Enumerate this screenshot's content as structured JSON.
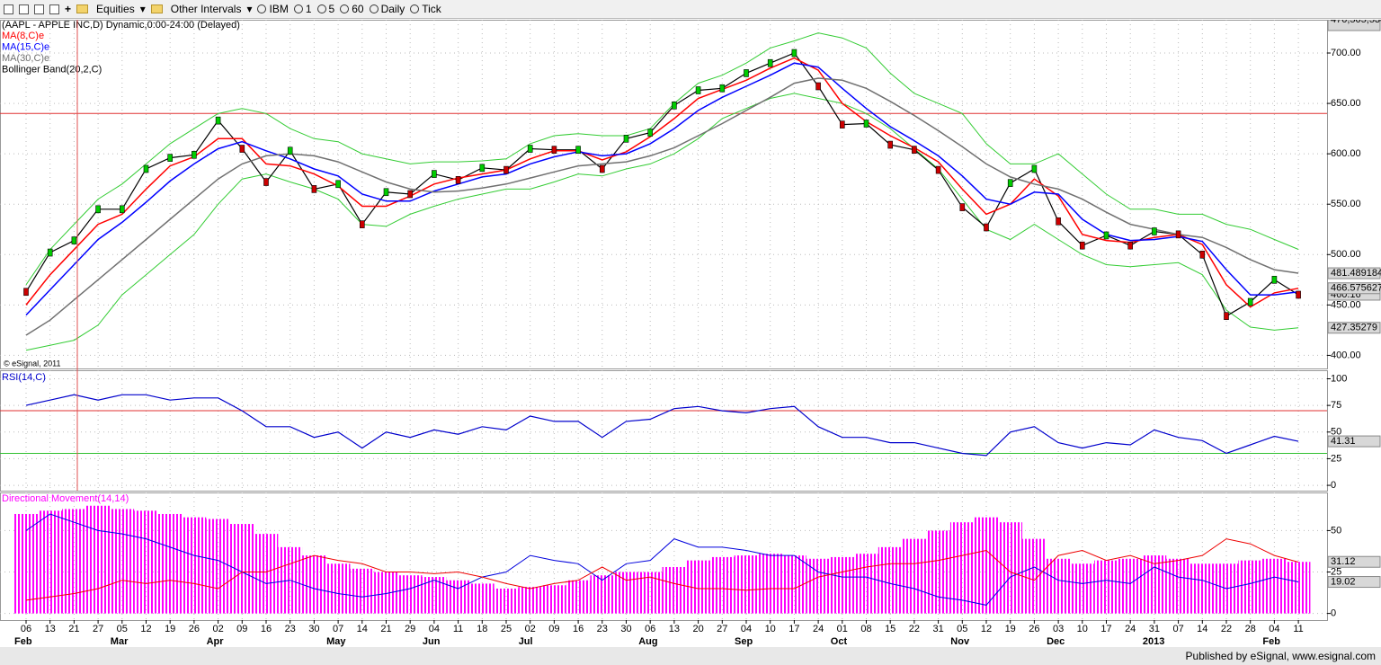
{
  "toolbar": {
    "items": [
      "Equities",
      "Other Intervals",
      "IBM",
      "1",
      "5",
      "60",
      "Daily",
      "Tick"
    ]
  },
  "footer": "Published by eSignal, www.esignal.com",
  "copyright": "© eSignal, 2011",
  "chart_data": [
    {
      "type": "line",
      "title": "(AAPL - APPLE INC,D) Dynamic,0:00-24:00 (Delayed)",
      "categories": [
        "06",
        "13",
        "21",
        "27",
        "05",
        "12",
        "19",
        "26",
        "02",
        "09",
        "16",
        "23",
        "30",
        "07",
        "14",
        "21",
        "29",
        "04",
        "11",
        "18",
        "25",
        "02",
        "09",
        "16",
        "23",
        "30",
        "06",
        "13",
        "20",
        "27",
        "04",
        "10",
        "17",
        "24",
        "01",
        "08",
        "15",
        "22",
        "31",
        "05",
        "12",
        "19",
        "26",
        "03",
        "10",
        "17",
        "24",
        "31",
        "07",
        "14",
        "22",
        "28",
        "04",
        "11"
      ],
      "months": [
        {
          "label": "Feb",
          "index": 0
        },
        {
          "label": "Mar",
          "index": 4
        },
        {
          "label": "Apr",
          "index": 8
        },
        {
          "label": "May",
          "index": 13
        },
        {
          "label": "Jun",
          "index": 17
        },
        {
          "label": "Jul",
          "index": 21
        },
        {
          "label": "Aug",
          "index": 26
        },
        {
          "label": "Sep",
          "index": 30
        },
        {
          "label": "Oct",
          "index": 34
        },
        {
          "label": "Nov",
          "index": 39
        },
        {
          "label": "Dec",
          "index": 43
        },
        {
          "label": "2013",
          "index": 47
        },
        {
          "label": "Feb",
          "index": 52
        }
      ],
      "ylim": [
        387,
        733
      ],
      "yticks": [
        {
          "value": 400,
          "label": "400.00"
        },
        {
          "value": 450,
          "label": "450.00"
        },
        {
          "value": 500,
          "label": "500.00"
        },
        {
          "value": 550,
          "label": "550.00"
        },
        {
          "value": 600,
          "label": "600.00"
        },
        {
          "value": 650,
          "label": "650.00"
        },
        {
          "value": 700,
          "label": "700.00"
        }
      ],
      "grid": true,
      "levels": [
        {
          "value": 640,
          "color": "#e03030"
        }
      ],
      "series": [
        {
          "color": "#000000",
          "values": [
            463,
            502,
            514,
            545,
            545,
            585,
            596,
            599,
            633,
            605,
            572,
            603,
            565,
            570,
            530,
            562,
            560,
            580,
            574,
            586,
            584,
            605,
            604,
            604,
            585,
            615,
            621,
            648,
            663,
            665,
            680,
            690,
            700,
            667,
            629,
            630,
            609,
            604,
            584,
            547,
            527,
            571,
            585,
            533,
            509,
            519,
            509,
            523,
            520,
            500,
            439,
            453,
            475,
            460.16
          ]
        },
        {
          "name": "MA(8,C)e",
          "color": "#ff0000",
          "values": [
            450,
            480,
            505,
            530,
            540,
            565,
            588,
            597,
            615,
            615,
            590,
            588,
            580,
            568,
            548,
            548,
            558,
            570,
            576,
            580,
            584,
            595,
            603,
            603,
            594,
            602,
            617,
            635,
            655,
            664,
            673,
            685,
            695,
            683,
            650,
            632,
            618,
            606,
            592,
            565,
            540,
            550,
            575,
            558,
            520,
            514,
            512,
            517,
            520,
            510,
            470,
            448,
            462,
            466.575627
          ]
        },
        {
          "name": "MA(15,C)e",
          "color": "#0000ff",
          "values": [
            440,
            465,
            490,
            515,
            532,
            552,
            573,
            590,
            605,
            612,
            603,
            595,
            585,
            578,
            560,
            553,
            553,
            563,
            570,
            577,
            580,
            590,
            597,
            602,
            598,
            600,
            610,
            625,
            643,
            656,
            667,
            678,
            690,
            686,
            665,
            645,
            627,
            613,
            598,
            578,
            555,
            550,
            562,
            560,
            535,
            520,
            514,
            515,
            518,
            513,
            485,
            460,
            460,
            463
          ]
        },
        {
          "name": "MA(30,C)e",
          "color": "#707070",
          "values": [
            420,
            435,
            455,
            475,
            495,
            515,
            535,
            555,
            575,
            590,
            598,
            600,
            598,
            592,
            582,
            572,
            565,
            562,
            563,
            566,
            570,
            576,
            582,
            588,
            590,
            592,
            598,
            606,
            618,
            630,
            643,
            656,
            670,
            675,
            673,
            665,
            652,
            638,
            623,
            607,
            590,
            577,
            570,
            565,
            555,
            542,
            530,
            525,
            520,
            517,
            507,
            495,
            485,
            481.489184
          ]
        }
      ],
      "bands": {
        "name": "Bollinger Band(20,2,C)",
        "color": "#33cc33",
        "upper": [
          470,
          505,
          530,
          555,
          570,
          590,
          610,
          625,
          640,
          645,
          640,
          625,
          615,
          612,
          600,
          595,
          590,
          592,
          592,
          593,
          595,
          610,
          618,
          620,
          618,
          618,
          625,
          650,
          670,
          678,
          690,
          705,
          712,
          720,
          715,
          705,
          680,
          660,
          650,
          640,
          610,
          590,
          590,
          600,
          580,
          560,
          545,
          545,
          540,
          540,
          530,
          525,
          515,
          505.19671
        ],
        "lower": [
          405,
          410,
          415,
          430,
          460,
          480,
          500,
          520,
          550,
          575,
          580,
          572,
          565,
          555,
          530,
          528,
          540,
          548,
          555,
          560,
          565,
          565,
          572,
          580,
          578,
          585,
          590,
          600,
          615,
          635,
          645,
          655,
          660,
          655,
          650,
          640,
          625,
          605,
          585,
          555,
          525,
          515,
          530,
          515,
          500,
          490,
          488,
          490,
          492,
          480,
          445,
          428,
          425,
          427.35279
        ]
      }
    },
    {
      "type": "line",
      "title": "RSI(14,C)",
      "ylim": [
        -5,
        108
      ],
      "yticks": [
        0,
        25,
        50,
        75,
        100
      ],
      "levels": [
        {
          "value": 70,
          "color": "#e03030"
        },
        {
          "value": 30,
          "color": "#30c030"
        }
      ],
      "series": [
        {
          "color": "#0000cc",
          "values": [
            75,
            80,
            85,
            80,
            85,
            85,
            80,
            82,
            82,
            70,
            55,
            55,
            45,
            50,
            35,
            50,
            45,
            52,
            48,
            55,
            52,
            65,
            60,
            60,
            45,
            60,
            62,
            72,
            74,
            70,
            68,
            72,
            74,
            55,
            45,
            45,
            40,
            40,
            35,
            30,
            28,
            50,
            55,
            40,
            35,
            40,
            38,
            52,
            45,
            42,
            30,
            38,
            46,
            41.31
          ]
        }
      ]
    },
    {
      "type": "bar",
      "title": "Directional Movement(14,14)",
      "ylim": [
        -4,
        73
      ],
      "yticks": [
        0,
        25,
        50
      ],
      "series": [
        {
          "color": "#ff00ff",
          "values": [
            60,
            62,
            63,
            65,
            63,
            62,
            60,
            58,
            57,
            54,
            48,
            40,
            35,
            30,
            27,
            25,
            23,
            22,
            20,
            18,
            15,
            16,
            17,
            20,
            23,
            25,
            25,
            28,
            32,
            34,
            35,
            36,
            35,
            33,
            34,
            36,
            40,
            45,
            50,
            55,
            58,
            55,
            45,
            33,
            30,
            32,
            33,
            35,
            33,
            30,
            30,
            32,
            33,
            31.12
          ]
        }
      ],
      "line_series": [
        {
          "color": "#0000dd",
          "values": [
            50,
            60,
            55,
            50,
            48,
            45,
            40,
            35,
            32,
            25,
            18,
            20,
            15,
            12,
            10,
            12,
            15,
            20,
            15,
            22,
            25,
            35,
            32,
            30,
            20,
            30,
            32,
            45,
            40,
            40,
            38,
            35,
            35,
            25,
            22,
            22,
            18,
            15,
            10,
            8,
            5,
            22,
            28,
            20,
            18,
            20,
            18,
            28,
            22,
            20,
            15,
            18,
            22,
            19.02
          ]
        },
        {
          "color": "#ee0000",
          "values": [
            8,
            10,
            12,
            15,
            20,
            18,
            20,
            18,
            15,
            25,
            25,
            30,
            35,
            32,
            30,
            25,
            25,
            24,
            25,
            22,
            18,
            15,
            18,
            20,
            28,
            20,
            22,
            18,
            15,
            15,
            14,
            15,
            15,
            22,
            25,
            28,
            30,
            30,
            32,
            35,
            38,
            25,
            20,
            35,
            38,
            32,
            35,
            30,
            32,
            35,
            45,
            42,
            35,
            31
          ]
        }
      ]
    }
  ]
}
